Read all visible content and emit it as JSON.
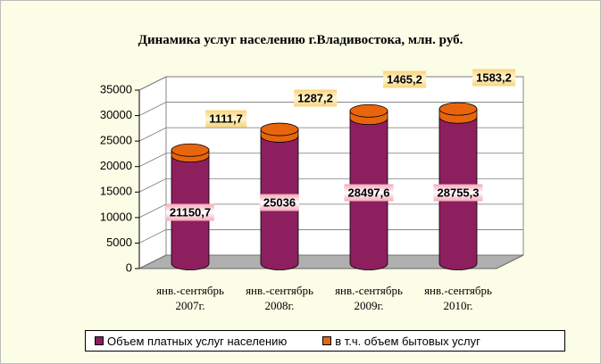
{
  "chart_data": {
    "type": "bar",
    "stacked": true,
    "title": "Динамика услуг населению г.Владивостока, млн. руб.",
    "categories": [
      "янв.-сентябрь 2007г.",
      "янв.-сентябрь 2008г.",
      "янв.-сентябрь 2009г.",
      "янв.-сентябрь 2010г."
    ],
    "series": [
      {
        "name": "Объем платных услуг населению",
        "color": "#8e1f5e",
        "values": [
          21150.7,
          25036,
          28497.6,
          28755.3
        ],
        "value_labels": [
          "21150,7",
          "25036",
          "28497,6",
          "28755,3"
        ]
      },
      {
        "name": "в т.ч. объем бытовых услуг",
        "color": "#e8650e",
        "values": [
          1111.7,
          1287.2,
          1465.2,
          1583.2
        ],
        "value_labels": [
          "1111,7",
          "1287,2",
          "1465,2",
          "1583,2"
        ]
      }
    ],
    "ylim": [
      0,
      35000
    ],
    "yticks": [
      0,
      5000,
      10000,
      15000,
      20000,
      25000,
      30000,
      35000
    ],
    "grid": true,
    "legend": "bottom"
  }
}
